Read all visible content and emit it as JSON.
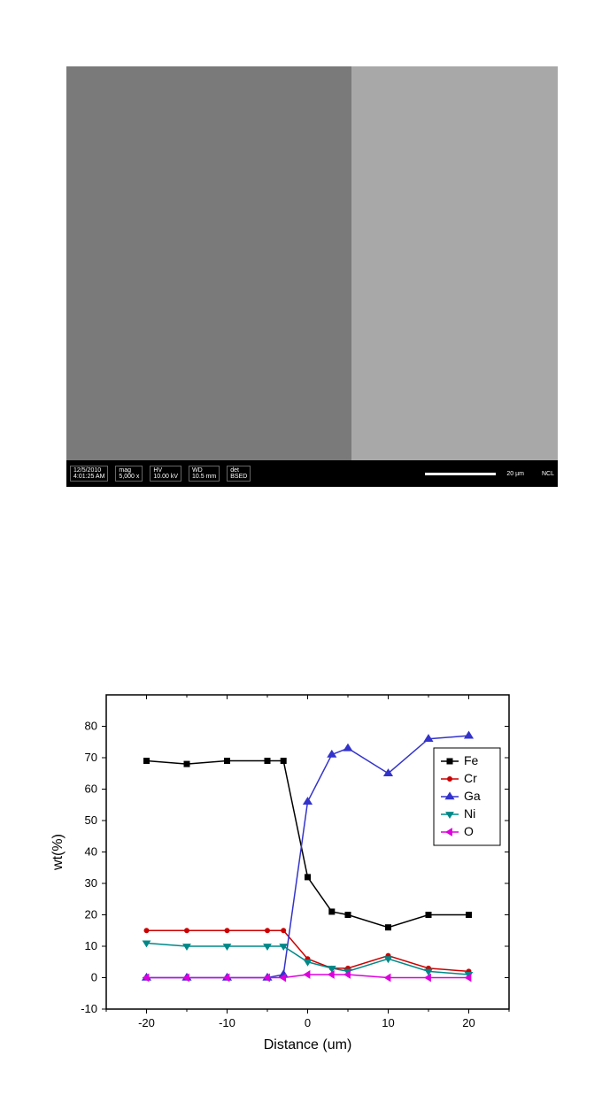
{
  "sem": {
    "date": "12/5/2010",
    "time": "4:01:25 AM",
    "mag": "mag",
    "mag_val": "5,000 x",
    "hv": "HV",
    "hv_val": "10.00 kV",
    "wd": "WD",
    "wd_val": "10.5 mm",
    "det": "det",
    "det_val": "BSED",
    "scale": "20 µm",
    "lab": "NCL",
    "left_color": "#7a7a7a",
    "right_color": "#a8a8a8"
  },
  "chart": {
    "type": "line-scatter",
    "xlabel": "Distance (um)",
    "ylabel": "wt(%)",
    "xlim": [
      -25,
      25
    ],
    "ylim": [
      -10,
      90
    ],
    "xticks": [
      -20,
      -10,
      0,
      10,
      20
    ],
    "yticks": [
      -10,
      0,
      10,
      20,
      30,
      40,
      50,
      60,
      70,
      80
    ],
    "background_color": "#ffffff",
    "axis_color": "#000000",
    "axis_width": 1.5,
    "label_fontsize": 16,
    "tick_fontsize": 13,
    "legend_fontsize": 14,
    "legend_position": "right",
    "series": [
      {
        "name": "Fe",
        "color": "#000000",
        "marker": "square",
        "marker_size": 6,
        "line_width": 1.5,
        "x": [
          -20,
          -15,
          -10,
          -5,
          -3,
          0,
          3,
          5,
          10,
          15,
          20
        ],
        "y": [
          69,
          68,
          69,
          69,
          69,
          32,
          21,
          20,
          16,
          20,
          20
        ]
      },
      {
        "name": "Cr",
        "color": "#cc0000",
        "marker": "circle",
        "marker_size": 5,
        "line_width": 1.5,
        "x": [
          -20,
          -15,
          -10,
          -5,
          -3,
          0,
          3,
          5,
          10,
          15,
          20
        ],
        "y": [
          15,
          15,
          15,
          15,
          15,
          6,
          3,
          3,
          7,
          3,
          2
        ]
      },
      {
        "name": "Ga",
        "color": "#3333cc",
        "marker": "triangle-up",
        "marker_size": 7,
        "line_width": 1.5,
        "x": [
          -20,
          -15,
          -10,
          -5,
          -3,
          0,
          3,
          5,
          10,
          15,
          20
        ],
        "y": [
          0,
          0,
          0,
          0,
          1,
          56,
          71,
          73,
          65,
          76,
          77
        ]
      },
      {
        "name": "Ni",
        "color": "#008888",
        "marker": "triangle-down",
        "marker_size": 6,
        "line_width": 1.5,
        "x": [
          -20,
          -15,
          -10,
          -5,
          -3,
          0,
          3,
          5,
          10,
          15,
          20
        ],
        "y": [
          11,
          10,
          10,
          10,
          10,
          5,
          3,
          2,
          6,
          2,
          1
        ]
      },
      {
        "name": "O",
        "color": "#dd00dd",
        "marker": "triangle-left",
        "marker_size": 6,
        "line_width": 1.5,
        "x": [
          -20,
          -15,
          -10,
          -5,
          -3,
          0,
          3,
          5,
          10,
          15,
          20
        ],
        "y": [
          0,
          0,
          0,
          0,
          0,
          1,
          1,
          1,
          0,
          0,
          0
        ]
      }
    ]
  }
}
